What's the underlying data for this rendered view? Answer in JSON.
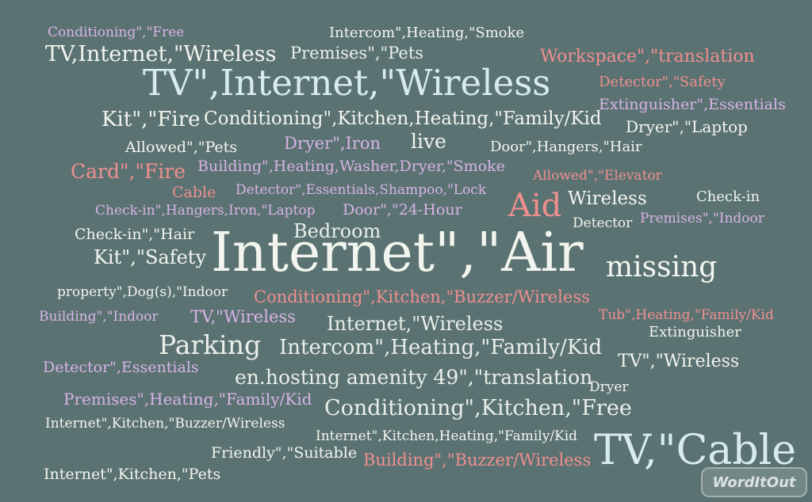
{
  "words": [
    "Conditioning\",\"Free",
    "Intercom\",Heating,\"Smoke",
    "TV,Internet,\"Wireless",
    "Premises\",\"Pets",
    "Workspace\",\"translation",
    "TV\",Internet,\"Wireless",
    "Detector\",\"Safety",
    "Extinguisher\",Essentials",
    "Kit\",\"Fire",
    "Conditioning\",Kitchen,Heating,\"Family/Kid",
    "Dryer\",\"Laptop",
    "Allowed\",\"Pets",
    "Dryer\",Iron",
    "live",
    "Door\",Hangers,\"Hair",
    "Card\",\"Fire",
    "Building\",Heating,Washer,Dryer,\"Smoke",
    "Allowed\",\"Elevator",
    "Cable",
    "Detector\",Essentials,Shampoo,\"Lock",
    "Aid",
    "Wireless",
    "Check-in",
    "Check-in\",Hangers,Iron,\"Laptop",
    "Door\",\"24-Hour",
    "Premises\",\"Indoor",
    "Detector",
    "Check-in\",\"Hair",
    "Bedroom",
    "Internet\",\"Air",
    "Kit\",\"Safety",
    "missing",
    "property\",Dog(s),\"Indoor",
    "Conditioning\",Kitchen,\"Buzzer/Wireless",
    "Building\",\"Indoor",
    "TV,\"Wireless",
    "Internet,\"Wireless",
    "Tub\",Heating,\"Family/Kid",
    "Extinguisher",
    "Parking",
    "Intercom\",Heating,\"Family/Kid",
    "Detector\",Essentials",
    "TV\",\"Wireless",
    "en.hosting amenity 49\",\"translation",
    "Dryer",
    "Premises\",Heating,\"Family/Kid",
    "Conditioning\",Kitchen,\"Free",
    "Internet\",Kitchen,\"Buzzer/Wireless",
    "Internet\",Kitchen,Heating,\"Family/Kid",
    "TV,\"Cable",
    "Friendly\",\"Suitable",
    "Building\",\"Buzzer/Wireless",
    "Internet\",Kitchen,\"Pets"
  ],
  "logo": {
    "text": "WordItOut"
  },
  "colors": {
    "background": "#5b7272",
    "white": "#f2f5ee",
    "pink": "#ef8f8f",
    "lavender": "#d7b4e6",
    "blue": "#d8ecf0"
  }
}
